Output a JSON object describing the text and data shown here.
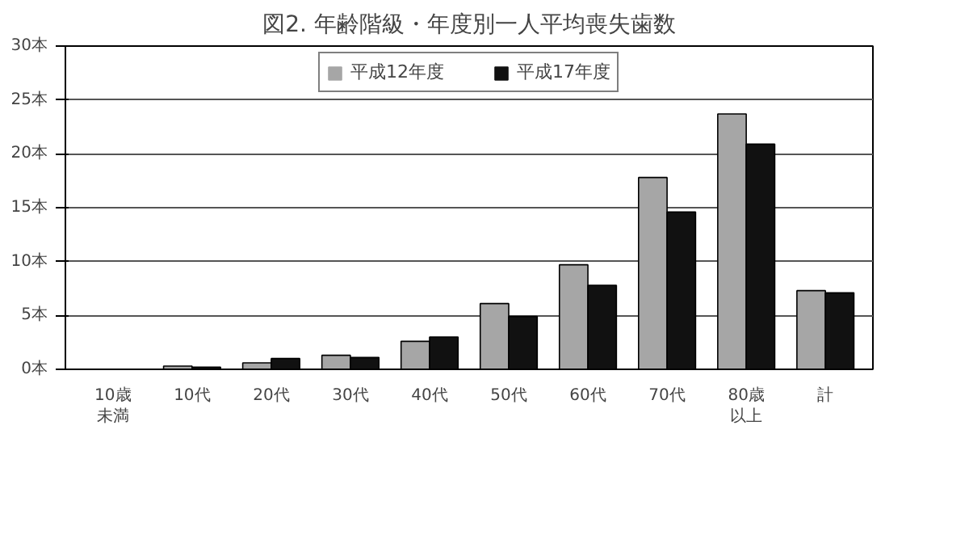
{
  "chart_data": {
    "type": "bar",
    "title": "図2. 年齢階級・年度別一人平均喪失歯数",
    "categories": [
      "10歳未満",
      "10代",
      "20代",
      "30代",
      "40代",
      "50代",
      "60代",
      "70代",
      "80歳以上",
      "計"
    ],
    "series": [
      {
        "name": "平成12年度",
        "color": "#a6a6a6",
        "values": [
          0,
          0.3,
          0.6,
          1.3,
          2.6,
          6.1,
          9.7,
          17.8,
          23.7,
          7.3
        ]
      },
      {
        "name": "平成17年度",
        "color": "#111111",
        "values": [
          0,
          0.2,
          1.0,
          1.1,
          3.0,
          4.9,
          7.8,
          14.6,
          20.9,
          7.1
        ]
      }
    ],
    "ylim": [
      0,
      30
    ],
    "yticks": [
      {
        "value": 0,
        "label": "0本"
      },
      {
        "value": 5,
        "label": "5本"
      },
      {
        "value": 10,
        "label": "10本"
      },
      {
        "value": 15,
        "label": "15本"
      },
      {
        "value": 20,
        "label": "20本"
      },
      {
        "value": 25,
        "label": "25本"
      },
      {
        "value": 30,
        "label": "30本"
      }
    ],
    "grid": "y",
    "legend": "top"
  }
}
